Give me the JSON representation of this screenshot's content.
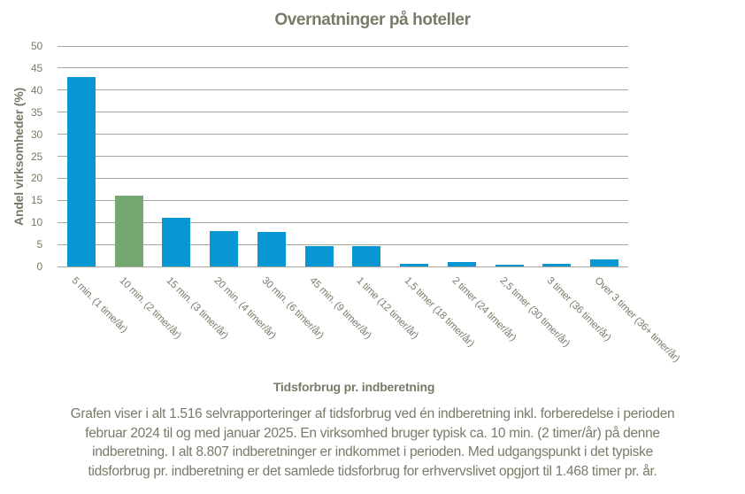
{
  "chart_data": {
    "type": "bar",
    "title": "Overnatninger på hoteller",
    "ylabel": "Andel virksomheder (%)",
    "xlabel": "Tidsforbrug pr. indberetning",
    "categories": [
      "5 min. (1 time/år)",
      "10 min. (2 timer/år)",
      "15 min. (3 timer/år)",
      "20 min. (4 timer/år)",
      "30 min. (6 timer/år)",
      "45 min. (9 timer/år)",
      "1 time (12 timer/år)",
      "1,5 timer (18 timer/år)",
      "2 timer (24 timer/år)",
      "2,5 timer (30 timer/år)",
      "3 timer (36 timer/år)",
      "Over 3 timer (36+ timer/år)"
    ],
    "values": [
      43,
      16,
      11,
      8,
      7.8,
      4.6,
      4.6,
      0.7,
      1.0,
      0.5,
      0.7,
      1.7
    ],
    "ylim": [
      0,
      50
    ],
    "ytick_step": 5,
    "grid": "horizontal",
    "legend": "none",
    "bar_color": "#0a96d2",
    "highlight_index": 1,
    "highlight_color": "#74a870",
    "grid_color": "#a9a59b",
    "text_color": "#7b7968"
  },
  "footer": {
    "lines": [
      "Grafen viser i alt 1.516 selvrapporteringer af tidsforbrug ved én indberetning inkl. forberedelse i perioden",
      "februar 2024 til og med januar 2025. En virksomhed bruger typisk ca. 10 min. (2 timer/år) på denne",
      "indberetning. I alt 8.807 indberetninger er indkommet i perioden. Med udgangspunkt i det typiske",
      "tidsforbrug pr. indberetning er det samlede tidsforbrug for erhvervslivet opgjort til 1.468 timer pr. år."
    ]
  }
}
